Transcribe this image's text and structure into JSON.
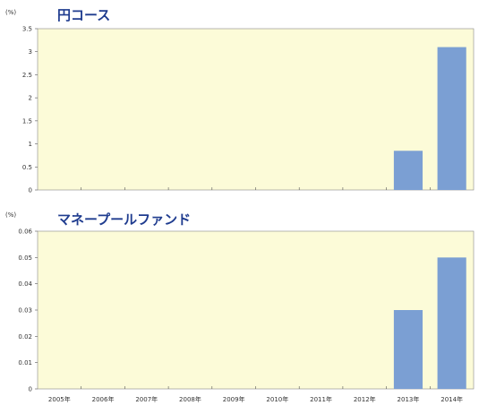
{
  "chart_data": [
    {
      "type": "bar",
      "title": "円コース",
      "ylabel": "(%)",
      "categories": [
        "2005年",
        "2006年",
        "2007年",
        "2008年",
        "2009年",
        "2010年",
        "2011年",
        "2012年",
        "2013年",
        "2014年"
      ],
      "values": [
        0,
        0,
        0,
        0,
        0,
        0,
        0,
        0,
        0.85,
        3.1
      ],
      "ylim": [
        0,
        3.5
      ],
      "yticks": [
        "0",
        "0.5",
        "1",
        "1.5",
        "2",
        "2.5",
        "3",
        "3.5"
      ],
      "show_xtick_labels": false,
      "bar_color": "#7b9fd3",
      "plot_bg": "#fcfbd8",
      "grid": false
    },
    {
      "type": "bar",
      "title": "マネープールファンド",
      "ylabel": "(%)",
      "categories": [
        "2005年",
        "2006年",
        "2007年",
        "2008年",
        "2009年",
        "2010年",
        "2011年",
        "2012年",
        "2013年",
        "2014年"
      ],
      "values": [
        0,
        0,
        0,
        0,
        0,
        0,
        0,
        0,
        0.03,
        0.05
      ],
      "ylim": [
        0,
        0.06
      ],
      "yticks": [
        "0",
        "0.01",
        "0.02",
        "0.03",
        "0.04",
        "0.05",
        "0.06"
      ],
      "show_xtick_labels": true,
      "bar_color": "#7b9fd3",
      "plot_bg": "#fcfbd8",
      "grid": false
    }
  ]
}
